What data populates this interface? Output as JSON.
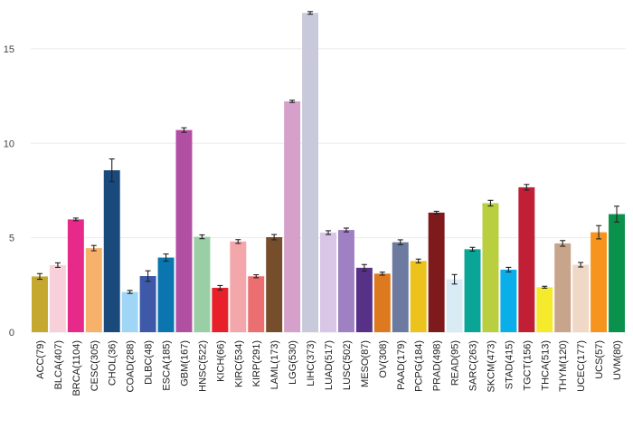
{
  "chart_data": {
    "type": "bar",
    "title": "",
    "xlabel": "",
    "ylabel": "",
    "ylim": [
      0,
      17.2
    ],
    "yticks": [
      0,
      5,
      10,
      15
    ],
    "grid": true,
    "legend": "none",
    "error_bars": true,
    "categories": [
      "ACC(79)",
      "BLCA(407)",
      "BRCA(1104)",
      "CESC(305)",
      "CHOL(36)",
      "COAD(288)",
      "DLBC(48)",
      "ESCA(185)",
      "GBM(167)",
      "HNSC(522)",
      "KICH(66)",
      "KIRC(534)",
      "KIRP(291)",
      "LAML(173)",
      "LGG(530)",
      "LIHC(373)",
      "LUAD(517)",
      "LUSC(502)",
      "MESO(87)",
      "OV(308)",
      "PAAD(179)",
      "PCPG(184)",
      "PRAD(498)",
      "READ(95)",
      "SARC(263)",
      "SKCM(473)",
      "STAD(415)",
      "TGCT(156)",
      "THCA(513)",
      "THYM(120)",
      "UCEC(177)",
      "UCS(57)",
      "UVM(80)"
    ],
    "values": [
      2.95,
      3.55,
      5.97,
      4.45,
      8.57,
      2.13,
      2.97,
      3.95,
      10.7,
      5.05,
      2.35,
      4.8,
      2.96,
      5.03,
      12.22,
      16.9,
      5.27,
      5.41,
      3.41,
      3.1,
      4.76,
      3.77,
      6.33,
      2.8,
      4.39,
      6.83,
      3.31,
      7.67,
      2.38,
      4.7,
      3.57,
      5.29,
      6.25
    ],
    "errors": [
      0.15,
      0.12,
      0.07,
      0.14,
      0.6,
      0.08,
      0.28,
      0.19,
      0.12,
      0.1,
      0.12,
      0.1,
      0.08,
      0.14,
      0.06,
      0.07,
      0.1,
      0.1,
      0.17,
      0.08,
      0.13,
      0.1,
      0.07,
      0.25,
      0.1,
      0.15,
      0.12,
      0.15,
      0.05,
      0.15,
      0.12,
      0.35,
      0.42
    ],
    "colors": [
      "#C5A82F",
      "#F8D0DA",
      "#E7298A",
      "#F6B26B",
      "#1A4A7C",
      "#9FD6F5",
      "#3D59A8",
      "#0B75B0",
      "#B14FA3",
      "#9ACFA5",
      "#E8202A",
      "#F3A7AA",
      "#EB6F70",
      "#774E2B",
      "#D5A0C9",
      "#C8CADB",
      "#D9C5E6",
      "#9F80C2",
      "#573088",
      "#DD7A1F",
      "#6B7A9E",
      "#EBC31C",
      "#7E1A1C",
      "#D9ECF6",
      "#0AA596",
      "#BACF40",
      "#0AAEE8",
      "#C01F35",
      "#F5EA2C",
      "#C8A48A",
      "#F0D8C6",
      "#F7941D",
      "#0A924C"
    ]
  }
}
